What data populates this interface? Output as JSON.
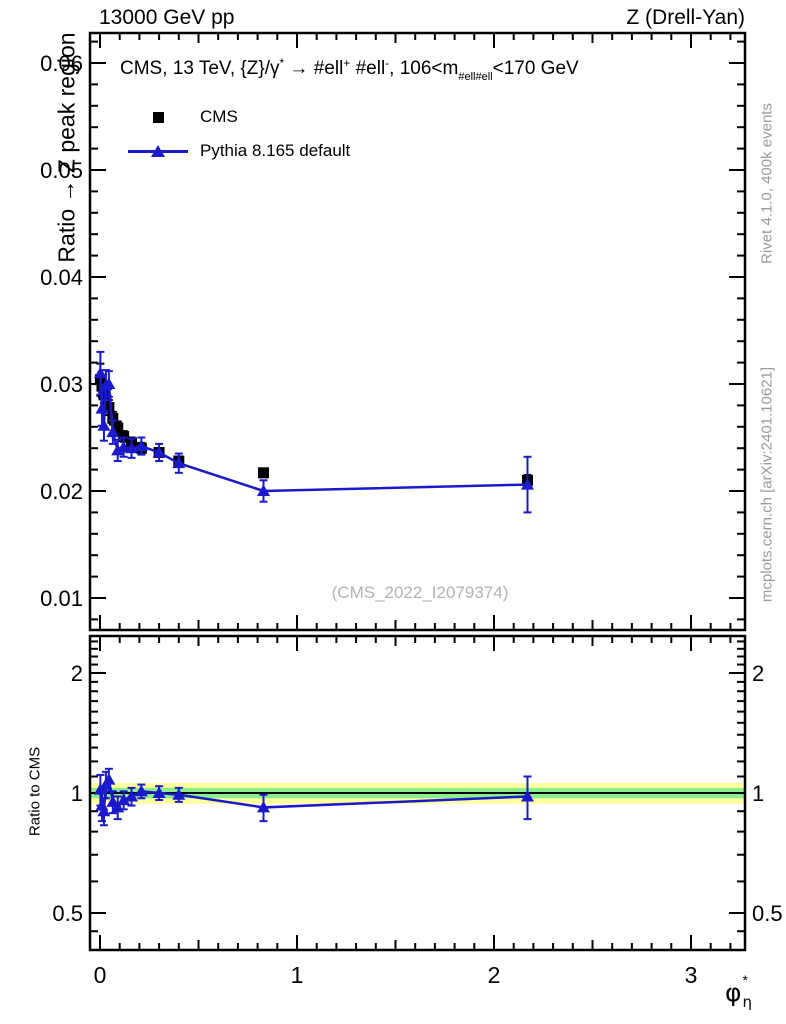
{
  "header": {
    "beam": "13000 GeV pp",
    "process": "Z (Drell-Yan)"
  },
  "title": {
    "p1": "CMS, 13 TeV, {Z}/γ",
    "sup1": "*",
    "p2": " →  #ell",
    "sup2": "+",
    "p3": " #ell",
    "sup3": "-",
    "p4": ", 106<m",
    "sub4": "#ell#ell",
    "p5": "<170 GeV"
  },
  "legend": {
    "cms_label": "CMS",
    "pythia_label": "Pythia 8.165 default"
  },
  "watermark": "(CMS_2022_I2079374)",
  "side_notes": {
    "top": "Rivet 4.1.0,  400k events",
    "bottom": "mcplots.cern.ch [arXiv:2401.10621]"
  },
  "axis_labels": {
    "main_y": "Ratio → Z peak region",
    "ratio_y": "Ratio to CMS",
    "x_base": "φ",
    "x_sup": "*",
    "x_sub": "η"
  },
  "colors": {
    "cms": "#000000",
    "pythia": "#1a1acc",
    "band_yellow": "#ffff9e",
    "band_green": "#8dee8d",
    "gray_text": "#9a9a9a"
  },
  "chart_data": {
    "type": "scatter",
    "title": "CMS, 13 TeV, Z/gamma* -> ell+ ell-, 106<m_ellell<170 GeV",
    "xlabel": "phi*_eta",
    "ylabel": "Ratio -> Z peak region",
    "xlim": [
      -0.05,
      3.27
    ],
    "main_ylim": [
      0.007,
      0.0628
    ],
    "ratio_ylim": [
      0.404,
      2.48
    ],
    "ratio_scale": "log",
    "grid": false,
    "legend_position": "top-left",
    "x_major_ticks": [
      0,
      1,
      2,
      3
    ],
    "main_y_major_ticks": [
      0.01,
      0.02,
      0.03,
      0.04,
      0.05,
      0.06
    ],
    "ratio_y_major_ticks": [
      0.5,
      1,
      2
    ],
    "band": {
      "line": 1.0,
      "green": [
        0.97,
        1.03
      ],
      "yellow": [
        0.94,
        1.06
      ]
    },
    "x": [
      0.002,
      0.01,
      0.02,
      0.03,
      0.045,
      0.065,
      0.09,
      0.12,
      0.16,
      0.21,
      0.3,
      0.4,
      0.83,
      2.17
    ],
    "series": [
      {
        "name": "CMS",
        "marker": "square",
        "values": [
          0.0304,
          0.0298,
          0.029,
          0.0285,
          0.0278,
          0.0268,
          0.0259,
          0.0251,
          0.0245,
          0.024,
          0.0236,
          0.0228,
          0.0217,
          0.021
        ],
        "errors": [
          0.0015,
          0.001,
          0.0008,
          0.0008,
          0.0007,
          0.0006,
          0.0006,
          0.0005,
          0.0005,
          0.0005,
          0.0004,
          0.0004,
          0.0004,
          0.0005
        ]
      },
      {
        "name": "Pythia 8.165 default",
        "marker": "triangle",
        "line": true,
        "values": [
          0.031,
          0.0277,
          0.0261,
          0.0299,
          0.03,
          0.0255,
          0.0238,
          0.0241,
          0.024,
          0.0242,
          0.0236,
          0.0226,
          0.02,
          0.0206
        ],
        "errors": [
          0.002,
          0.0016,
          0.0014,
          0.0014,
          0.0012,
          0.0011,
          0.001,
          0.0009,
          0.0009,
          0.0008,
          0.0008,
          0.0009,
          0.001,
          0.0026
        ]
      }
    ],
    "ratio_series": {
      "name": "Pythia 8.165 default / CMS",
      "values": [
        1.02,
        0.93,
        0.9,
        1.05,
        1.08,
        0.95,
        0.92,
        0.96,
        0.98,
        1.01,
        1.0,
        0.99,
        0.92,
        0.98
      ],
      "errors": [
        0.09,
        0.08,
        0.07,
        0.08,
        0.07,
        0.06,
        0.06,
        0.05,
        0.05,
        0.04,
        0.04,
        0.04,
        0.07,
        0.12
      ]
    }
  }
}
